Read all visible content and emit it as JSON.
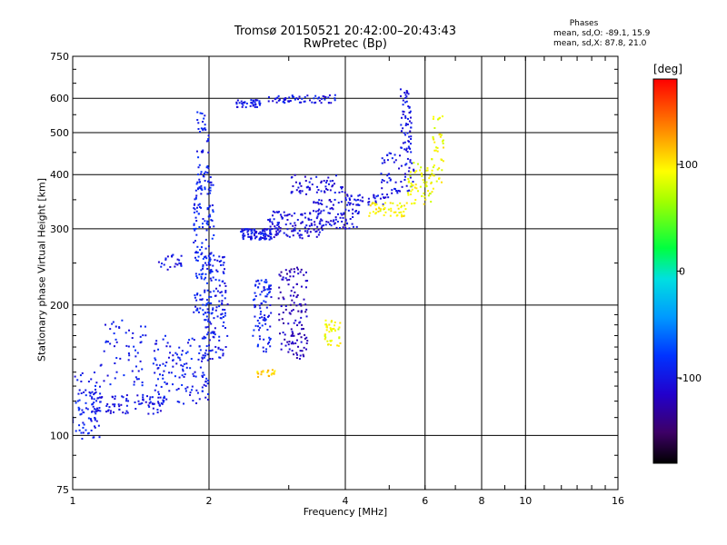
{
  "chart_data": {
    "type": "scatter",
    "title": "Tromsø 20150521 20:42:00–20:43:43",
    "subtitle": "RwPretec (Bp)",
    "xlabel": "Frequency [MHz]",
    "ylabel": "Stationary phase Virtual Height [km]",
    "x_scale": "log",
    "y_scale": "log",
    "xlim": [
      1,
      16
    ],
    "ylim": [
      75,
      750
    ],
    "xticks": [
      1,
      2,
      4,
      6,
      8,
      10,
      16
    ],
    "xtick_labels": [
      "1",
      "2",
      "4",
      "6",
      "8",
      "10",
      "16"
    ],
    "yticks": [
      75,
      100,
      200,
      300,
      400,
      500,
      600,
      750
    ],
    "ytick_labels": [
      "75",
      "100",
      "200",
      "300",
      "400",
      "500",
      "600",
      "750"
    ],
    "grid": true,
    "phase_legend": {
      "title": "Phases",
      "line_o": "mean, sd,O: -89.1, 15.9",
      "line_x": "mean, sd,X: 87.8, 21.0"
    },
    "colorbar": {
      "unit": "[deg]",
      "range": [
        -180,
        180
      ],
      "ticks": [
        100,
        0,
        -100
      ],
      "tick_labels": [
        "100",
        "0",
        "-100"
      ]
    },
    "series": [
      {
        "x_range": [
          1.0,
          1.15
        ],
        "y_range": [
          98,
          140
        ],
        "phase": -95,
        "count": 80
      },
      {
        "x_range": [
          1.1,
          1.6
        ],
        "y_range": [
          112,
          125
        ],
        "phase": -100,
        "count": 90
      },
      {
        "x_range": [
          1.15,
          1.45
        ],
        "y_range": [
          130,
          185
        ],
        "phase": -98,
        "count": 60
      },
      {
        "x_range": [
          1.5,
          1.95
        ],
        "y_range": [
          118,
          170
        ],
        "phase": -95,
        "count": 110
      },
      {
        "x_range": [
          1.55,
          1.75
        ],
        "y_range": [
          240,
          262
        ],
        "phase": -100,
        "count": 25
      },
      {
        "x_range": [
          1.85,
          2.05
        ],
        "y_range": [
          190,
          400
        ],
        "phase": -90,
        "count": 180
      },
      {
        "x_range": [
          1.88,
          2.0
        ],
        "y_range": [
          400,
          560
        ],
        "phase": -92,
        "count": 40
      },
      {
        "x_range": [
          1.93,
          2.0
        ],
        "y_range": [
          120,
          190
        ],
        "phase": -96,
        "count": 40
      },
      {
        "x_range": [
          2.0,
          2.2
        ],
        "y_range": [
          150,
          260
        ],
        "phase": -97,
        "count": 100
      },
      {
        "x_range": [
          2.35,
          2.75
        ],
        "y_range": [
          283,
          300
        ],
        "phase": -100,
        "count": 90
      },
      {
        "x_range": [
          2.5,
          2.75
        ],
        "y_range": [
          155,
          230
        ],
        "phase": -92,
        "count": 90
      },
      {
        "x_range": [
          2.85,
          3.3
        ],
        "y_range": [
          150,
          245
        ],
        "phase": -120,
        "count": 130
      },
      {
        "x_range": [
          2.7,
          3.6
        ],
        "y_range": [
          285,
          330
        ],
        "phase": -108,
        "count": 110
      },
      {
        "x_range": [
          3.3,
          4.3
        ],
        "y_range": [
          300,
          350
        ],
        "phase": -105,
        "count": 90
      },
      {
        "x_range": [
          3.0,
          4.0
        ],
        "y_range": [
          360,
          400
        ],
        "phase": -105,
        "count": 60
      },
      {
        "x_range": [
          2.3,
          2.6
        ],
        "y_range": [
          572,
          595
        ],
        "phase": -100,
        "count": 40
      },
      {
        "x_range": [
          2.7,
          3.8
        ],
        "y_range": [
          585,
          612
        ],
        "phase": -100,
        "count": 60
      },
      {
        "x_range": [
          4.0,
          5.0
        ],
        "y_range": [
          340,
          360
        ],
        "phase": -100,
        "count": 40
      },
      {
        "x_range": [
          4.8,
          5.7
        ],
        "y_range": [
          360,
          450
        ],
        "phase": -100,
        "count": 60
      },
      {
        "x_range": [
          5.3,
          5.6
        ],
        "y_range": [
          450,
          640
        ],
        "phase": -103,
        "count": 60
      },
      {
        "x_range": [
          3.6,
          3.9
        ],
        "y_range": [
          160,
          185
        ],
        "phase": 90,
        "count": 40
      },
      {
        "x_range": [
          4.5,
          5.5
        ],
        "y_range": [
          320,
          345
        ],
        "phase": 95,
        "count": 50
      },
      {
        "x_range": [
          5.5,
          6.3
        ],
        "y_range": [
          340,
          430
        ],
        "phase": 90,
        "count": 60
      },
      {
        "x_range": [
          6.2,
          6.6
        ],
        "y_range": [
          380,
          560
        ],
        "phase": 92,
        "count": 40
      },
      {
        "x_range": [
          2.55,
          2.8
        ],
        "y_range": [
          136,
          142
        ],
        "phase": 110,
        "count": 20
      }
    ]
  }
}
